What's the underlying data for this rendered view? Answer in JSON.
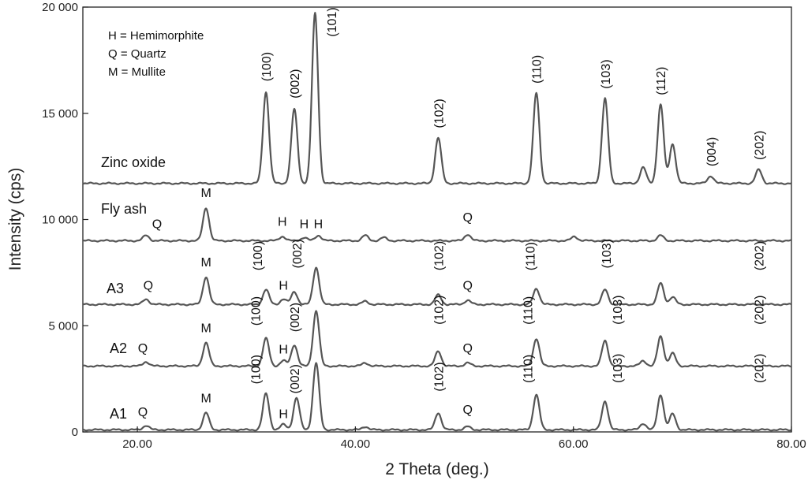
{
  "chart_data": {
    "type": "line",
    "xlabel": "2 Theta (deg.)",
    "ylabel": "Intensity (cps)",
    "xlim": [
      15,
      80
    ],
    "ylim": [
      0,
      20000
    ],
    "x_ticks": [
      {
        "value": 20,
        "label": "20.00"
      },
      {
        "value": 40,
        "label": "40.00"
      },
      {
        "value": 60,
        "label": "60.00"
      },
      {
        "value": 80,
        "label": "80.00"
      }
    ],
    "y_ticks": [
      {
        "value": 0,
        "label": "0"
      },
      {
        "value": 5000,
        "label": "5 000"
      },
      {
        "value": 10000,
        "label": "10 000"
      },
      {
        "value": 15000,
        "label": "15 000"
      },
      {
        "value": 20000,
        "label": "20 000"
      }
    ],
    "legend": {
      "placement": "top-left",
      "items": [
        "H = Hemimorphite",
        "Q = Quartz",
        "M = Mullite"
      ]
    },
    "series": [
      {
        "name": "Zinc oxide",
        "baseline": 11700,
        "peaks": [
          {
            "x": 31.8,
            "y": 16000
          },
          {
            "x": 34.4,
            "y": 15200
          },
          {
            "x": 36.3,
            "y": 19700
          },
          {
            "x": 47.6,
            "y": 13850
          },
          {
            "x": 56.6,
            "y": 15950
          },
          {
            "x": 62.9,
            "y": 15700
          },
          {
            "x": 66.4,
            "y": 12450
          },
          {
            "x": 68.0,
            "y": 15400
          },
          {
            "x": 69.1,
            "y": 13550
          },
          {
            "x": 72.6,
            "y": 12050
          },
          {
            "x": 77.0,
            "y": 12350
          }
        ],
        "annotations": [
          {
            "text": "(100)",
            "x": 31.8,
            "y": 16500
          },
          {
            "text": "(002)",
            "x": 34.4,
            "y": 15700
          },
          {
            "text": "(101)",
            "x": 37.8,
            "y": 18600
          },
          {
            "text": "(102)",
            "x": 47.6,
            "y": 14300
          },
          {
            "text": "(110)",
            "x": 56.6,
            "y": 16400
          },
          {
            "text": "(103)",
            "x": 62.9,
            "y": 16150
          },
          {
            "text": "(112)",
            "x": 68.0,
            "y": 15850
          },
          {
            "text": "(004)",
            "x": 72.6,
            "y": 12500
          },
          {
            "text": "(202)",
            "x": 77.0,
            "y": 12800
          }
        ]
      },
      {
        "name": "Fly ash",
        "baseline": 9000,
        "peaks": [
          {
            "x": 20.8,
            "y": 9250
          },
          {
            "x": 26.3,
            "y": 10550
          },
          {
            "x": 33.3,
            "y": 9200
          },
          {
            "x": 35.3,
            "y": 9150
          },
          {
            "x": 36.6,
            "y": 9250
          },
          {
            "x": 40.9,
            "y": 9250
          },
          {
            "x": 42.6,
            "y": 9150
          },
          {
            "x": 50.3,
            "y": 9300
          },
          {
            "x": 60.1,
            "y": 9200
          },
          {
            "x": 68.0,
            "y": 9250
          }
        ],
        "annotations": [
          {
            "text": "M",
            "x": 26.3,
            "y": 11050
          },
          {
            "text": "Q",
            "x": 21.8,
            "y": 9600
          },
          {
            "text": "H",
            "x": 33.3,
            "y": 9700
          },
          {
            "text": "H",
            "x": 35.3,
            "y": 9600
          },
          {
            "text": "H",
            "x": 36.6,
            "y": 9600
          },
          {
            "text": "Q",
            "x": 50.3,
            "y": 9900
          }
        ]
      },
      {
        "name": "A3",
        "baseline": 6000,
        "peaks": [
          {
            "x": 20.8,
            "y": 6250
          },
          {
            "x": 26.3,
            "y": 7300
          },
          {
            "x": 31.8,
            "y": 6700
          },
          {
            "x": 33.4,
            "y": 6250
          },
          {
            "x": 34.4,
            "y": 6600
          },
          {
            "x": 36.4,
            "y": 7750
          },
          {
            "x": 40.9,
            "y": 6150
          },
          {
            "x": 47.6,
            "y": 6450
          },
          {
            "x": 50.3,
            "y": 6200
          },
          {
            "x": 56.6,
            "y": 6750
          },
          {
            "x": 62.9,
            "y": 6700
          },
          {
            "x": 68.0,
            "y": 7000
          },
          {
            "x": 69.1,
            "y": 6350
          }
        ],
        "annotations": [
          {
            "text": "M",
            "x": 26.3,
            "y": 7800
          },
          {
            "text": "Q",
            "x": 21.0,
            "y": 6700
          },
          {
            "text": "(100)",
            "x": 31.0,
            "y": 7600
          },
          {
            "text": "H",
            "x": 33.4,
            "y": 6700
          },
          {
            "text": "(002)",
            "x": 34.6,
            "y": 7700
          },
          {
            "text": "(102)",
            "x": 47.6,
            "y": 7600
          },
          {
            "text": "Q",
            "x": 50.3,
            "y": 6700
          },
          {
            "text": "(110)",
            "x": 56.0,
            "y": 7600
          },
          {
            "text": "(103)",
            "x": 63.0,
            "y": 7700
          },
          {
            "text": "(202)",
            "x": 77.0,
            "y": 7600
          }
        ]
      },
      {
        "name": "A2",
        "baseline": 3100,
        "peaks": [
          {
            "x": 20.8,
            "y": 3300
          },
          {
            "x": 26.3,
            "y": 4200
          },
          {
            "x": 31.8,
            "y": 4400
          },
          {
            "x": 33.4,
            "y": 3350
          },
          {
            "x": 34.4,
            "y": 4100
          },
          {
            "x": 36.4,
            "y": 5700
          },
          {
            "x": 40.9,
            "y": 3250
          },
          {
            "x": 47.6,
            "y": 3800
          },
          {
            "x": 50.3,
            "y": 3250
          },
          {
            "x": 56.6,
            "y": 4400
          },
          {
            "x": 62.9,
            "y": 4300
          },
          {
            "x": 66.4,
            "y": 3350
          },
          {
            "x": 68.0,
            "y": 4500
          },
          {
            "x": 69.1,
            "y": 3700
          }
        ],
        "annotations": [
          {
            "text": "M",
            "x": 26.3,
            "y": 4700
          },
          {
            "text": "Q",
            "x": 20.5,
            "y": 3750
          },
          {
            "text": "(100)",
            "x": 30.8,
            "y": 5000
          },
          {
            "text": "H",
            "x": 33.4,
            "y": 3700
          },
          {
            "text": "(002)",
            "x": 34.4,
            "y": 4700
          },
          {
            "text": "(102)",
            "x": 47.6,
            "y": 5050
          },
          {
            "text": "Q",
            "x": 50.3,
            "y": 3750
          },
          {
            "text": "(110)",
            "x": 55.8,
            "y": 5050
          },
          {
            "text": "(103)",
            "x": 64.0,
            "y": 5050
          },
          {
            "text": "(202)",
            "x": 77.0,
            "y": 5050
          }
        ]
      },
      {
        "name": "A1",
        "baseline": 100,
        "peaks": [
          {
            "x": 20.8,
            "y": 300
          },
          {
            "x": 26.3,
            "y": 900
          },
          {
            "x": 31.8,
            "y": 1800
          },
          {
            "x": 33.4,
            "y": 350
          },
          {
            "x": 34.6,
            "y": 1600
          },
          {
            "x": 36.4,
            "y": 3250
          },
          {
            "x": 40.9,
            "y": 250
          },
          {
            "x": 47.6,
            "y": 900
          },
          {
            "x": 50.3,
            "y": 250
          },
          {
            "x": 56.6,
            "y": 1750
          },
          {
            "x": 62.9,
            "y": 1450
          },
          {
            "x": 66.4,
            "y": 400
          },
          {
            "x": 68.0,
            "y": 1750
          },
          {
            "x": 69.1,
            "y": 850
          }
        ],
        "annotations": [
          {
            "text": "M",
            "x": 26.3,
            "y": 1400
          },
          {
            "text": "Q",
            "x": 20.5,
            "y": 750
          },
          {
            "text": "(100)",
            "x": 30.8,
            "y": 2250
          },
          {
            "text": "H",
            "x": 33.4,
            "y": 650
          },
          {
            "text": "(002)",
            "x": 34.4,
            "y": 1800
          },
          {
            "text": "(102)",
            "x": 47.6,
            "y": 1900
          },
          {
            "text": "Q",
            "x": 50.3,
            "y": 850
          },
          {
            "text": "(110)",
            "x": 55.8,
            "y": 2300
          },
          {
            "text": "(103)",
            "x": 64.0,
            "y": 2300
          },
          {
            "text": "(202)",
            "x": 77.0,
            "y": 2300
          }
        ]
      }
    ]
  },
  "colors": {
    "trace": "#555555",
    "axis": "#222222",
    "text": "#111111"
  }
}
